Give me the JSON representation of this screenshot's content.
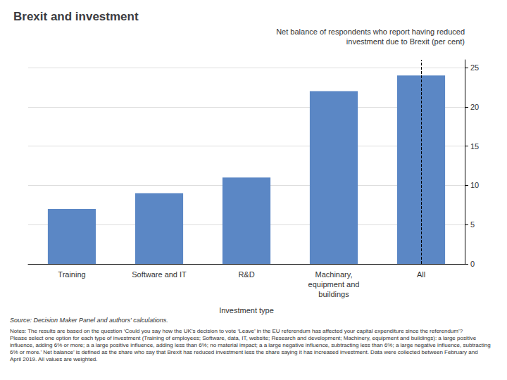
{
  "chart_data": {
    "type": "bar",
    "title": "Brexit and investment",
    "subtitle": "Net balance of respondents who report having reduced\ninvestment due to Brexit (per cent)",
    "categories": [
      "Training",
      "Software and IT",
      "R&D",
      "Machinary,\nequipment and\nbuildings",
      "All"
    ],
    "values": [
      7,
      9,
      11,
      22,
      24
    ],
    "color": "#5B87C5",
    "xlabel": "Investment type",
    "ylim": [
      0,
      26
    ],
    "yticks": [
      0,
      5,
      10,
      15,
      20,
      25
    ],
    "grid": true,
    "source": "Source: Decision Maker Panel and authors' calculations.",
    "notes": "Notes: The results are based on the question ‘Could you say how the UK’s decision to vote ‘Leave’ in the EU referendum has affected your capital expenditure since the referendum’? Please select one option for each type of investment (Training of employees; Software, data, IT, website; Research and development; Machinery, equipment and buildings): a large positive influence, adding 6% or more; a a large positive influence, adding less than 6%; no material impact; a a large negative influence, subtracting less than 6%; a large negative influence, subtracting 6% or more.’ Net balance’ is defined as the share who say that Brexit has reduced investment less the share saying it has increased investment. Data were collected between February and April 2019. All values are weighted."
  }
}
